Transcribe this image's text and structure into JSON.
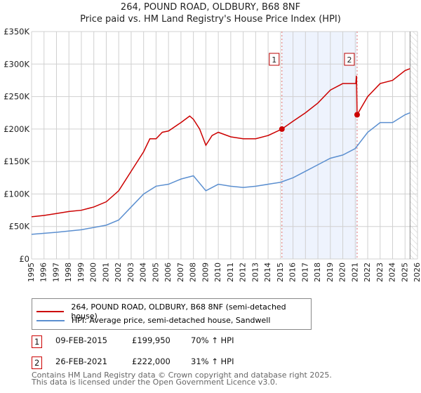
{
  "title": "264, POUND ROAD, OLDBURY, B68 8NF",
  "subtitle": "Price paid vs. HM Land Registry's House Price Index (HPI)",
  "chart_data": {
    "type": "line",
    "xlim": [
      1995,
      2026
    ],
    "ylim": [
      0,
      350000
    ],
    "yticks": [
      0,
      50000,
      100000,
      150000,
      200000,
      250000,
      300000,
      350000
    ],
    "ytick_labels": [
      "£0",
      "£50K",
      "£100K",
      "£150K",
      "£200K",
      "£250K",
      "£300K",
      "£350K"
    ],
    "xticks": [
      1995,
      1996,
      1997,
      1998,
      1999,
      2000,
      2001,
      2002,
      2003,
      2004,
      2005,
      2006,
      2007,
      2008,
      2009,
      2010,
      2011,
      2012,
      2013,
      2014,
      2015,
      2016,
      2017,
      2018,
      2019,
      2020,
      2021,
      2022,
      2023,
      2024,
      2025,
      2026
    ],
    "shaded_range": [
      2015.11,
      2021.15
    ],
    "hatched_from": 2025.4,
    "series": [
      {
        "name": "264, POUND ROAD, OLDBURY, B68 8NF (semi-detached house)",
        "color": "#cc0000",
        "x": [
          1995,
          1996,
          1997,
          1998,
          1999,
          2000,
          2001,
          2002,
          2003,
          2004,
          2004.5,
          2005,
          2005.5,
          2006,
          2007,
          2007.7,
          2008,
          2008.5,
          2009,
          2009.5,
          2010,
          2011,
          2012,
          2013,
          2014,
          2015.11,
          2016,
          2017,
          2018,
          2019,
          2020,
          2021.05,
          2021.1,
          2021.15,
          2022,
          2023,
          2024,
          2025,
          2025.4
        ],
        "y": [
          65000,
          67000,
          70000,
          73000,
          75000,
          80000,
          88000,
          105000,
          135000,
          165000,
          185000,
          185000,
          195000,
          197000,
          210000,
          220000,
          215000,
          200000,
          175000,
          190000,
          195000,
          188000,
          185000,
          185000,
          190000,
          199950,
          212000,
          225000,
          240000,
          260000,
          270000,
          270000,
          282000,
          222000,
          250000,
          270000,
          275000,
          290000,
          293000
        ]
      },
      {
        "name": "HPI: Average price, semi-detached house, Sandwell",
        "color": "#5b8fd0",
        "x": [
          1995,
          1997,
          1999,
          2001,
          2002,
          2003,
          2004,
          2005,
          2006,
          2007,
          2008,
          2009,
          2010,
          2011,
          2012,
          2013,
          2014,
          2015,
          2016,
          2017,
          2018,
          2019,
          2020,
          2021,
          2022,
          2023,
          2024,
          2025,
          2025.4
        ],
        "y": [
          38000,
          41000,
          45000,
          52000,
          60000,
          80000,
          100000,
          112000,
          115000,
          123000,
          128000,
          105000,
          115000,
          112000,
          110000,
          112000,
          115000,
          118000,
          125000,
          135000,
          145000,
          155000,
          160000,
          170000,
          195000,
          210000,
          210000,
          222000,
          225000
        ]
      }
    ],
    "sales": [
      {
        "label": "1",
        "x": 2015.11,
        "y": 199950
      },
      {
        "label": "2",
        "x": 2021.15,
        "y": 222000
      }
    ]
  },
  "legend": {
    "items": [
      "264, POUND ROAD, OLDBURY, B68 8NF (semi-detached house)",
      "HPI: Average price, semi-detached house, Sandwell"
    ]
  },
  "table": [
    {
      "num": "1",
      "date": "09-FEB-2015",
      "price": "£199,950",
      "hpi": "70% ↑ HPI"
    },
    {
      "num": "2",
      "date": "26-FEB-2021",
      "price": "£222,000",
      "hpi": "31% ↑ HPI"
    }
  ],
  "footer": [
    "Contains HM Land Registry data © Crown copyright and database right 2025.",
    "This data is licensed under the Open Government Licence v3.0."
  ]
}
